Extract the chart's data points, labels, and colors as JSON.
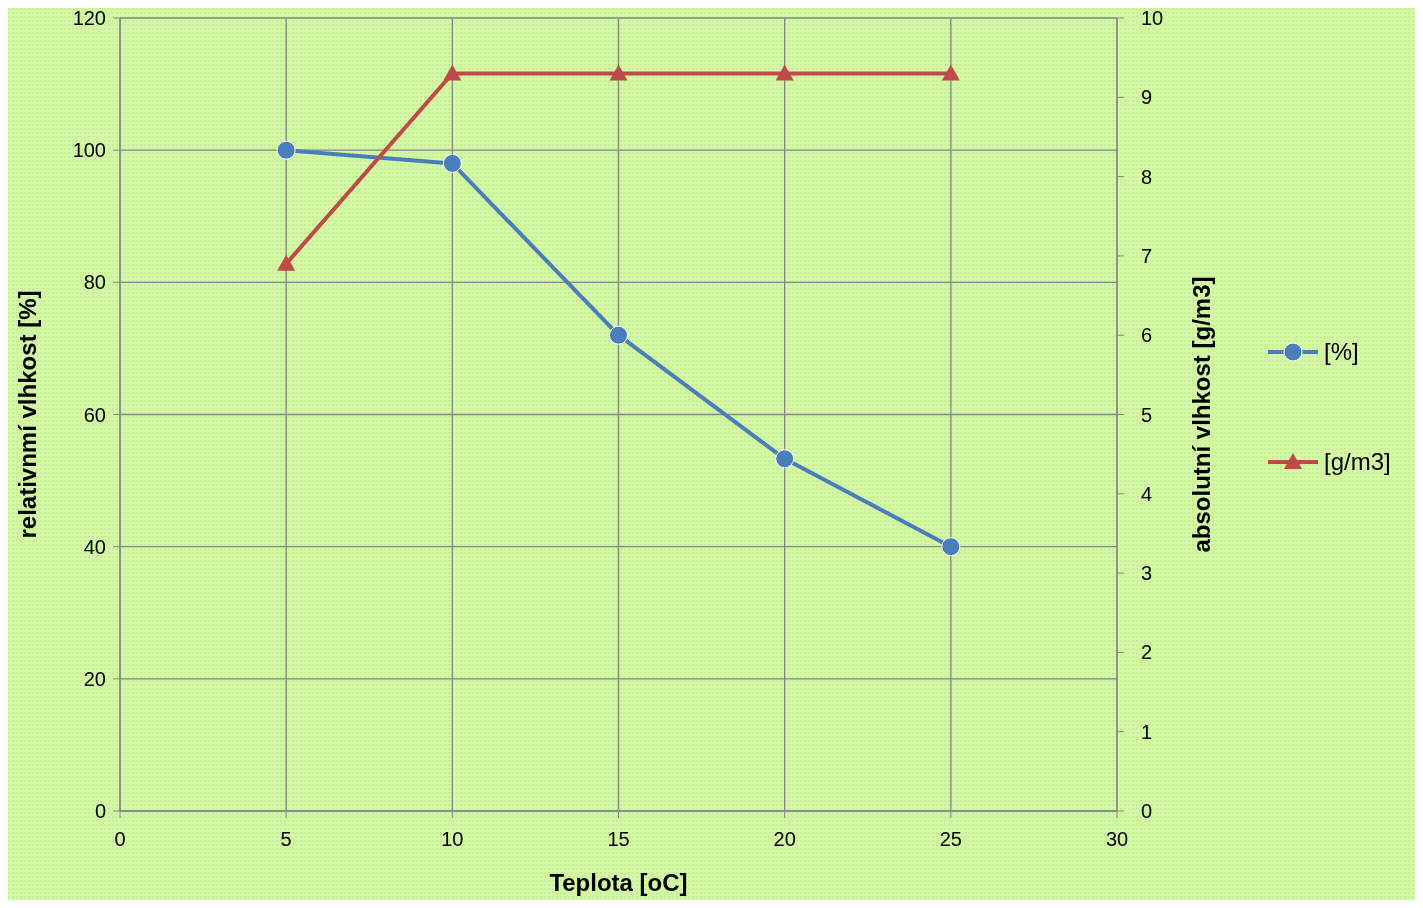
{
  "chart_data": {
    "type": "line",
    "xlabel": "Teplota [oC]",
    "ylabel": "relativnmí vlhkost [%]",
    "y2label": "absolutní vlhkost [g/m3]",
    "x": [
      5,
      10,
      15,
      20,
      25
    ],
    "series": [
      {
        "name": "[%]",
        "color": "#4a7ebb",
        "values": [
          100,
          98,
          72,
          53.3,
          40
        ],
        "marker": "circle"
      },
      {
        "name": "[g/m3]",
        "color": "#be4b48",
        "values": [
          6.9,
          9.3,
          9.3,
          9.3,
          9.3
        ],
        "marker": "triangle",
        "axis": "y2"
      }
    ],
    "xlim": [
      0,
      30
    ],
    "xticks": [
      0,
      5,
      10,
      15,
      20,
      25,
      30
    ],
    "ylim": [
      0,
      120
    ],
    "yticks": [
      0,
      20,
      40,
      60,
      80,
      100,
      120
    ],
    "y2lim": [
      0,
      10
    ],
    "y2ticks": [
      0,
      1,
      2,
      3,
      4,
      5,
      6,
      7,
      8,
      9,
      10
    ],
    "grid": true,
    "legend": "right"
  }
}
